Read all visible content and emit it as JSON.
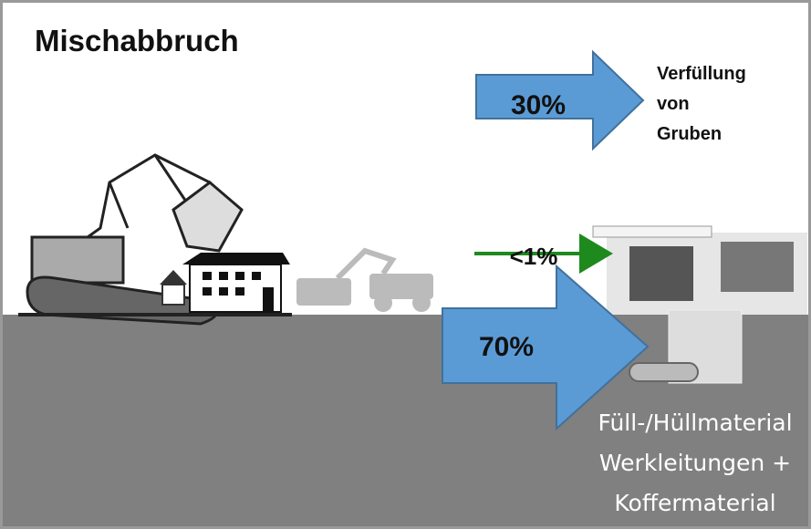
{
  "title": "Mischabbruch",
  "flows": [
    {
      "share": "30%",
      "target": [
        "Verfüllung",
        "von",
        "Gruben"
      ]
    },
    {
      "share": "<1%"
    },
    {
      "share": "70%",
      "target": [
        "Füll-/Hüllmaterial",
        "Werkleitungen +",
        "Koffermaterial"
      ]
    }
  ]
}
